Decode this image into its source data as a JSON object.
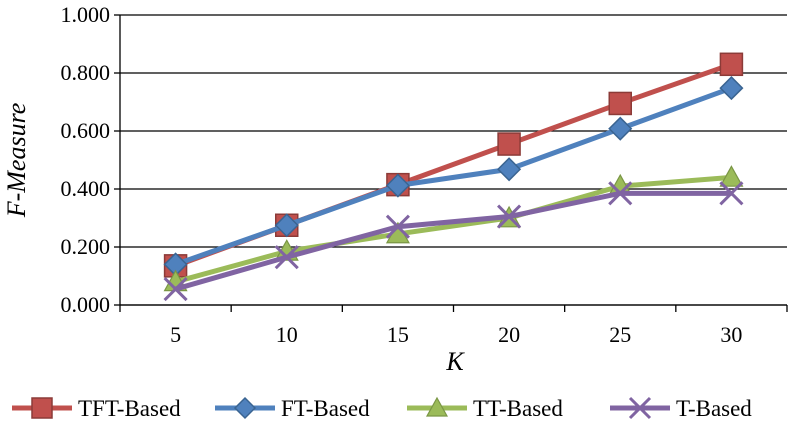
{
  "chart_data": {
    "type": "line",
    "title": "",
    "xlabel": "K",
    "ylabel": "F-Measure",
    "categories": [
      "5",
      "10",
      "15",
      "20",
      "25",
      "30"
    ],
    "ylim": [
      0,
      1.0
    ],
    "yticks": [
      "0.000",
      "0.200",
      "0.400",
      "0.600",
      "0.800",
      "1.000"
    ],
    "grid": "horizontal",
    "legend_position": "bottom",
    "series": [
      {
        "name": "TFT-Based",
        "color": "#C0504D",
        "marker": "square",
        "values": [
          0.135,
          0.275,
          0.415,
          0.555,
          0.695,
          0.83
        ]
      },
      {
        "name": "FT-Based",
        "color": "#4F81BD",
        "marker": "diamond",
        "values": [
          0.14,
          0.275,
          0.412,
          0.468,
          0.608,
          0.748
        ]
      },
      {
        "name": "TT-Based",
        "color": "#9BBB59",
        "marker": "triangle",
        "values": [
          0.08,
          0.185,
          0.245,
          0.3,
          0.41,
          0.44
        ]
      },
      {
        "name": "T-Based",
        "color": "#8064A2",
        "marker": "x",
        "values": [
          0.055,
          0.165,
          0.27,
          0.305,
          0.385,
          0.385
        ]
      }
    ]
  }
}
